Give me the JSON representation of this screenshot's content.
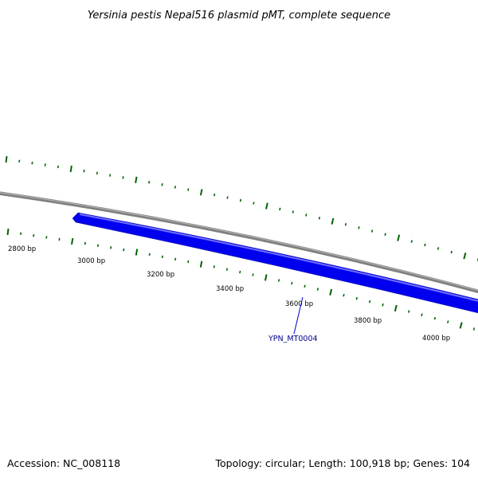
{
  "title": "Yersinia pestis Nepal516 plasmid pMT, complete sequence",
  "footer": {
    "accession": "Accession: NC_008118",
    "summary": "Topology: circular; Length: 100,918 bp; Genes: 104"
  },
  "colors": {
    "backbone": "#808080",
    "gene_fill": "#0000ee",
    "gene_highlight": "#6f6fff",
    "ticks": "#006400",
    "gene_label": "#00008b"
  },
  "position_labels": [
    "2800 bp",
    "3000 bp",
    "3200 bp",
    "3400 bp",
    "3600 bp",
    "3800 bp",
    "4000 bp"
  ],
  "genes": [
    {
      "name": "YPN_MT0004",
      "strand": "minus"
    }
  ]
}
